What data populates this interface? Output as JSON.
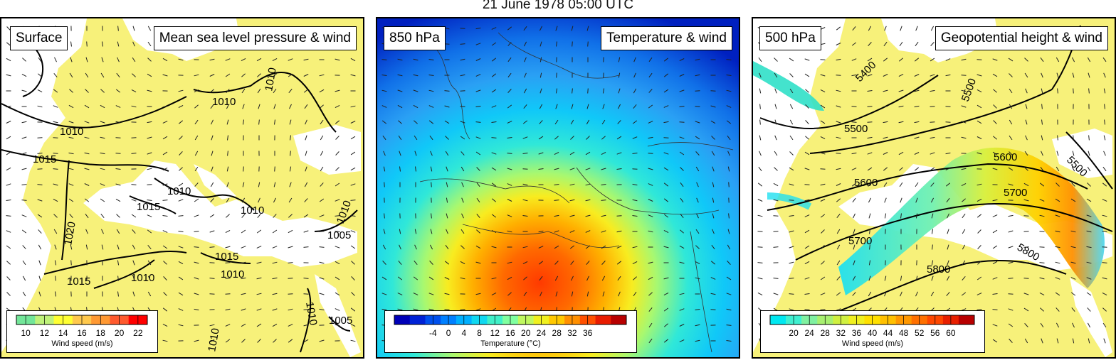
{
  "title": "21 June 1978 05:00 UTC",
  "panels": [
    {
      "level": "Surface",
      "field": "Mean sea level pressure & wind",
      "contour_labels": [
        "1010",
        "1010",
        "1010",
        "1015",
        "1015",
        "1010",
        "1010",
        "1015",
        "1010",
        "1020",
        "1015",
        "1010",
        "1005",
        "1005",
        "1010",
        "1010",
        "1010"
      ],
      "legend": {
        "title": "Wind speed (m/s)",
        "ticks": [
          "10",
          "12",
          "14",
          "16",
          "18",
          "20",
          "22"
        ],
        "colors": [
          "#73e699",
          "#bff27a",
          "#ffff33",
          "#ffc94d",
          "#ff9933",
          "#ff5a2e",
          "#ff0000"
        ]
      }
    },
    {
      "level": "850 hPa",
      "field": "Temperature & wind",
      "legend": {
        "title_prefix": "Temperature (",
        "title_unit": "°C",
        "title_suffix": ")",
        "ticks": [
          "-4",
          "0",
          "4",
          "8",
          "12",
          "16",
          "20",
          "24",
          "28",
          "32",
          "36"
        ],
        "colors": [
          "#0000b8",
          "#0022d6",
          "#0050ee",
          "#0080ff",
          "#00b0ff",
          "#10d8f0",
          "#40f0c8",
          "#80ffa0",
          "#c0f860",
          "#f0f020",
          "#ffc800",
          "#ff9000",
          "#ff5000",
          "#e81c00",
          "#b80000"
        ]
      }
    },
    {
      "level": "500 hPa",
      "field": "Geopotential height & wind",
      "contour_labels": [
        "5400",
        "5500",
        "5500",
        "5600",
        "5600",
        "5500",
        "5700",
        "5700",
        "5800",
        "5800"
      ],
      "legend": {
        "title": "Wind speed (m/s)",
        "ticks": [
          "20",
          "24",
          "28",
          "32",
          "36",
          "40",
          "44",
          "48",
          "52",
          "56",
          "60"
        ],
        "colors": [
          "#00e8f0",
          "#40f0d0",
          "#80f0a0",
          "#a8f070",
          "#d0f040",
          "#f0f020",
          "#ffe000",
          "#ffc000",
          "#ff9800",
          "#ff7000",
          "#ff4800",
          "#e82000",
          "#b80000"
        ]
      }
    }
  ],
  "colors": {
    "land": "#f7f17a",
    "sea": "#ffffff",
    "contour": "#000000"
  }
}
